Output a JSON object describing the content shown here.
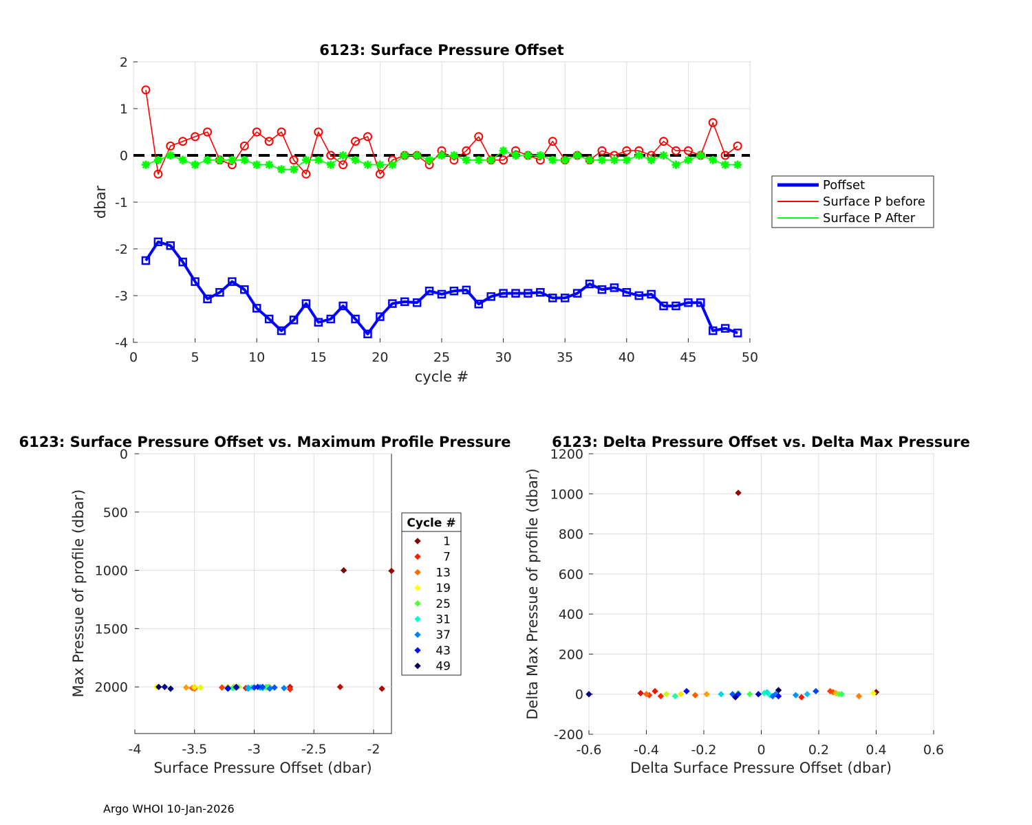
{
  "footer": "Argo WHOI 10-Jan-2026",
  "chart_data": [
    {
      "type": "line",
      "title": "6123: Surface Pressure Offset",
      "xlabel": "cycle #",
      "ylabel": "dbar",
      "xlim": [
        0,
        50
      ],
      "ylim": [
        -4,
        2
      ],
      "xticks": [
        0,
        5,
        10,
        15,
        20,
        25,
        30,
        35,
        40,
        45,
        50
      ],
      "yticks": [
        -4,
        -3,
        -2,
        -1,
        0,
        1,
        2
      ],
      "grid": true,
      "legend_position": "outside-right",
      "x": [
        1,
        2,
        3,
        4,
        5,
        6,
        7,
        8,
        9,
        10,
        11,
        12,
        13,
        14,
        15,
        16,
        17,
        18,
        19,
        20,
        21,
        22,
        23,
        24,
        25,
        26,
        27,
        28,
        29,
        30,
        31,
        32,
        33,
        34,
        35,
        36,
        37,
        38,
        39,
        40,
        41,
        42,
        43,
        44,
        45,
        46,
        47,
        48,
        49
      ],
      "series": [
        {
          "name": "Poffset",
          "color": "#0000ff",
          "marker": "square",
          "values": [
            -2.25,
            -1.85,
            -1.93,
            -2.28,
            -2.7,
            -3.07,
            -2.93,
            -2.7,
            -2.87,
            -3.27,
            -3.5,
            -3.75,
            -3.52,
            -3.17,
            -3.57,
            -3.5,
            -3.22,
            -3.5,
            -3.82,
            -3.45,
            -3.17,
            -3.13,
            -3.15,
            -2.9,
            -2.97,
            -2.9,
            -2.88,
            -3.18,
            -3.02,
            -2.95,
            -2.95,
            -2.95,
            -2.93,
            -3.05,
            -3.05,
            -2.95,
            -2.75,
            -2.87,
            -2.83,
            -2.93,
            -3.0,
            -2.97,
            -3.22,
            -3.22,
            -3.15,
            -3.15,
            -3.75,
            -3.7,
            -3.8
          ]
        },
        {
          "name": "Surface P before",
          "color": "#ff0000",
          "marker": "diamond",
          "values": [
            1.4,
            -0.4,
            0.2,
            0.3,
            0.4,
            0.5,
            -0.1,
            -0.2,
            0.2,
            0.5,
            0.3,
            0.5,
            -0.1,
            -0.4,
            0.5,
            0.0,
            -0.2,
            0.3,
            0.4,
            -0.4,
            -0.1,
            0.0,
            0.0,
            -0.2,
            0.1,
            -0.1,
            0.1,
            0.4,
            -0.1,
            -0.1,
            0.1,
            0.0,
            -0.1,
            0.3,
            -0.1,
            0.0,
            -0.1,
            0.1,
            0.0,
            0.1,
            0.1,
            0.0,
            0.3,
            0.1,
            0.1,
            0.0,
            0.7,
            0.0,
            0.2
          ]
        },
        {
          "name": "Surface P After",
          "color": "#00ff00",
          "marker": "asterisk",
          "values": [
            -0.2,
            -0.1,
            0.0,
            -0.1,
            -0.2,
            -0.1,
            -0.1,
            -0.1,
            -0.1,
            -0.2,
            -0.2,
            -0.3,
            -0.3,
            -0.1,
            -0.1,
            -0.2,
            0.0,
            -0.1,
            -0.2,
            -0.2,
            -0.2,
            0.0,
            0.0,
            -0.1,
            0.0,
            0.0,
            -0.1,
            -0.1,
            -0.1,
            0.1,
            0.0,
            0.0,
            0.0,
            -0.1,
            -0.1,
            0.0,
            -0.1,
            -0.1,
            -0.1,
            -0.1,
            0.0,
            -0.1,
            0.0,
            -0.2,
            -0.1,
            0.0,
            -0.1,
            -0.2,
            -0.2
          ]
        }
      ],
      "reference_line": {
        "y": 0,
        "style": "dashed",
        "color": "#000000"
      }
    },
    {
      "type": "scatter",
      "title": "6123: Surface Pressure Offset vs. Maximum Profile Pressure",
      "xlabel": "Surface Pressure Offset (dbar)",
      "ylabel": "Max Pressue of profile (dbar)",
      "xlim": [
        -4,
        -1.85
      ],
      "ylim": [
        0,
        2400
      ],
      "y_reversed": true,
      "xticks": [
        -4,
        -3.5,
        -3,
        -2.5,
        -2
      ],
      "xtick_labels": [
        "-4",
        "-3.5",
        "-3",
        "-2.5",
        "-2"
      ],
      "yticks": [
        0,
        500,
        1000,
        1500,
        2000
      ],
      "grid": true,
      "colorbar_legend_title": "Cycle #",
      "legend_entries": [
        {
          "label": "1",
          "color": "#800000"
        },
        {
          "label": "7",
          "color": "#ff1a00"
        },
        {
          "label": "13",
          "color": "#ff6a00"
        },
        {
          "label": "19",
          "color": "#ffff00"
        },
        {
          "label": "25",
          "color": "#4dff33"
        },
        {
          "label": "31",
          "color": "#00ffd0"
        },
        {
          "label": "37",
          "color": "#0080ff"
        },
        {
          "label": "43",
          "color": "#0010ff"
        },
        {
          "label": "49",
          "color": "#000060"
        }
      ],
      "points": [
        {
          "x": -2.25,
          "y": 1000,
          "cycle": 1
        },
        {
          "x": -1.85,
          "y": 1005,
          "cycle": 2
        },
        {
          "x": -1.93,
          "y": 2015,
          "cycle": 3
        },
        {
          "x": -2.28,
          "y": 2000,
          "cycle": 4
        },
        {
          "x": -2.7,
          "y": 2000,
          "cycle": 5
        },
        {
          "x": -3.07,
          "y": 2010,
          "cycle": 6
        },
        {
          "x": -2.93,
          "y": 2000,
          "cycle": 7
        },
        {
          "x": -2.7,
          "y": 2020,
          "cycle": 8
        },
        {
          "x": -2.87,
          "y": 2005,
          "cycle": 9
        },
        {
          "x": -3.27,
          "y": 2005,
          "cycle": 10
        },
        {
          "x": -3.5,
          "y": 2015,
          "cycle": 11
        },
        {
          "x": -3.75,
          "y": 2000,
          "cycle": 12
        },
        {
          "x": -3.52,
          "y": 2010,
          "cycle": 13
        },
        {
          "x": -3.17,
          "y": 2000,
          "cycle": 14
        },
        {
          "x": -3.57,
          "y": 2005,
          "cycle": 15
        },
        {
          "x": -3.5,
          "y": 2005,
          "cycle": 16
        },
        {
          "x": -3.22,
          "y": 2000,
          "cycle": 17
        },
        {
          "x": -3.5,
          "y": 2000,
          "cycle": 18
        },
        {
          "x": -3.82,
          "y": 2000,
          "cycle": 19
        },
        {
          "x": -3.45,
          "y": 2005,
          "cycle": 20
        },
        {
          "x": -3.17,
          "y": 2005,
          "cycle": 21
        },
        {
          "x": -3.13,
          "y": 2000,
          "cycle": 22
        },
        {
          "x": -3.15,
          "y": 2000,
          "cycle": 23
        },
        {
          "x": -2.9,
          "y": 2005,
          "cycle": 24
        },
        {
          "x": -2.97,
          "y": 2000,
          "cycle": 25
        },
        {
          "x": -2.9,
          "y": 2000,
          "cycle": 26
        },
        {
          "x": -2.88,
          "y": 2000,
          "cycle": 27
        },
        {
          "x": -3.18,
          "y": 2010,
          "cycle": 28
        },
        {
          "x": -3.02,
          "y": 2005,
          "cycle": 29
        },
        {
          "x": -2.95,
          "y": 2000,
          "cycle": 30
        },
        {
          "x": -2.95,
          "y": 2005,
          "cycle": 31
        },
        {
          "x": -2.95,
          "y": 2000,
          "cycle": 32
        },
        {
          "x": -2.93,
          "y": 2010,
          "cycle": 33
        },
        {
          "x": -3.05,
          "y": 2005,
          "cycle": 34
        },
        {
          "x": -3.05,
          "y": 2015,
          "cycle": 35
        },
        {
          "x": -2.95,
          "y": 2005,
          "cycle": 36
        },
        {
          "x": -2.75,
          "y": 2010,
          "cycle": 37
        },
        {
          "x": -2.87,
          "y": 2015,
          "cycle": 38
        },
        {
          "x": -2.83,
          "y": 2005,
          "cycle": 39
        },
        {
          "x": -2.93,
          "y": 2000,
          "cycle": 40
        },
        {
          "x": -3.0,
          "y": 2005,
          "cycle": 41
        },
        {
          "x": -2.97,
          "y": 2000,
          "cycle": 42
        },
        {
          "x": -3.22,
          "y": 2015,
          "cycle": 43
        },
        {
          "x": -3.22,
          "y": 2010,
          "cycle": 44
        },
        {
          "x": -3.15,
          "y": 2000,
          "cycle": 45
        },
        {
          "x": -3.15,
          "y": 2005,
          "cycle": 46
        },
        {
          "x": -3.75,
          "y": 2000,
          "cycle": 47
        },
        {
          "x": -3.7,
          "y": 2015,
          "cycle": 48
        },
        {
          "x": -3.8,
          "y": 2000,
          "cycle": 49
        }
      ]
    },
    {
      "type": "scatter",
      "title": "6123: Delta Pressure Offset vs. Delta Max Pressure",
      "xlabel": "Delta Surface Pressure Offset (dbar)",
      "ylabel": "Delta Max Pressue of profile (dbar)",
      "xlim": [
        -0.6,
        0.6
      ],
      "ylim": [
        -200,
        1200
      ],
      "xticks": [
        -0.6,
        -0.4,
        -0.2,
        0,
        0.2,
        0.4,
        0.6
      ],
      "xtick_labels": [
        "-0.6",
        "-0.4",
        "-0.2",
        "0",
        "0.2",
        "0.4",
        "0.6"
      ],
      "yticks": [
        -200,
        0,
        200,
        400,
        600,
        800,
        1000,
        1200
      ],
      "grid": true,
      "points": [
        {
          "x": -0.08,
          "y": 1005,
          "cycle": 2
        },
        {
          "x": 0.4,
          "y": 10,
          "cycle": 1
        },
        {
          "x": -0.42,
          "y": 5,
          "cycle": 5
        },
        {
          "x": -0.39,
          "y": -5,
          "cycle": 9
        },
        {
          "x": -0.37,
          "y": 15,
          "cycle": 6
        },
        {
          "x": -0.35,
          "y": -10,
          "cycle": 8
        },
        {
          "x": 0.14,
          "y": -15,
          "cycle": 7
        },
        {
          "x": 0.24,
          "y": 15,
          "cycle": 10
        },
        {
          "x": 0.25,
          "y": 10,
          "cycle": 11
        },
        {
          "x": -0.4,
          "y": 0,
          "cycle": 13
        },
        {
          "x": 0.34,
          "y": -10,
          "cycle": 14
        },
        {
          "x": -0.23,
          "y": -5,
          "cycle": 12
        },
        {
          "x": -0.19,
          "y": 0,
          "cycle": 15
        },
        {
          "x": 0.26,
          "y": 5,
          "cycle": 16
        },
        {
          "x": -0.28,
          "y": 0,
          "cycle": 18
        },
        {
          "x": 0.39,
          "y": 5,
          "cycle": 19
        },
        {
          "x": -0.33,
          "y": 0,
          "cycle": 21
        },
        {
          "x": 0.27,
          "y": 0,
          "cycle": 24
        },
        {
          "x": -0.08,
          "y": 5,
          "cycle": 25
        },
        {
          "x": -0.04,
          "y": 0,
          "cycle": 26
        },
        {
          "x": 0.28,
          "y": 0,
          "cycle": 27
        },
        {
          "x": -0.3,
          "y": -10,
          "cycle": 29
        },
        {
          "x": 0.01,
          "y": 5,
          "cycle": 30
        },
        {
          "x": 0.03,
          "y": -5,
          "cycle": 31
        },
        {
          "x": 0.02,
          "y": 10,
          "cycle": 32
        },
        {
          "x": -0.14,
          "y": 0,
          "cycle": 33
        },
        {
          "x": 0.16,
          "y": 0,
          "cycle": 34
        },
        {
          "x": 0.12,
          "y": -5,
          "cycle": 36
        },
        {
          "x": 0.05,
          "y": 0,
          "cycle": 37
        },
        {
          "x": 0.04,
          "y": -10,
          "cycle": 38
        },
        {
          "x": -0.1,
          "y": 0,
          "cycle": 39
        },
        {
          "x": 0.19,
          "y": 15,
          "cycle": 40
        },
        {
          "x": -0.26,
          "y": 15,
          "cycle": 44
        },
        {
          "x": 0.06,
          "y": -10,
          "cycle": 43
        },
        {
          "x": -0.08,
          "y": 0,
          "cycle": 42
        },
        {
          "x": -0.09,
          "y": -15,
          "cycle": 47
        },
        {
          "x": -0.6,
          "y": 0,
          "cycle": 48
        },
        {
          "x": 0.06,
          "y": 20,
          "cycle": 49
        },
        {
          "x": -0.01,
          "y": 0,
          "cycle": 46
        }
      ]
    }
  ]
}
